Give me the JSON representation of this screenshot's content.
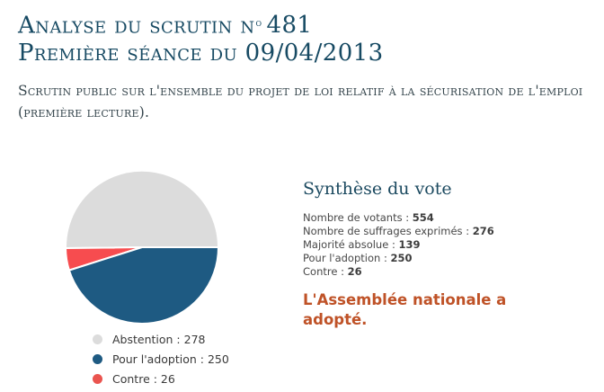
{
  "header": {
    "title_prefix": "Analyse du scrutin n",
    "title_ordinal": "o",
    "title_number": "481",
    "title_line2": "Première séance du 09/04/2013",
    "title_color": "#174a63",
    "subtitle": "Scrutin public sur l'ensemble du projet de loi relatif à la sécurisation de l'emploi (première lecture).",
    "subtitle_color": "#36464d"
  },
  "synthese": {
    "heading": "Synthèse du vote",
    "heading_color": "#1c4a60",
    "stats": [
      {
        "label": "Nombre de votants :",
        "value": "554"
      },
      {
        "label": "Nombre de suffrages exprimés :",
        "value": "276"
      },
      {
        "label": "Majorité absolue :",
        "value": "139"
      },
      {
        "label": "Pour l'adoption :",
        "value": "250"
      },
      {
        "label": "Contre :",
        "value": "26"
      }
    ],
    "result_message": "L'Assemblée nationale a adopté.",
    "result_color": "#bf5227"
  },
  "chart_data": {
    "type": "pie",
    "title": "",
    "total": 554,
    "start_angle_deg": 0,
    "direction": "counterclockwise",
    "slices": [
      {
        "label": "Abstention",
        "value": 278,
        "color": "#dcdcdc"
      },
      {
        "label": "Contre",
        "value": 26,
        "color": "#f74c4f"
      },
      {
        "label": "Pour l'adoption",
        "value": 250,
        "color": "#1e5a82"
      }
    ],
    "legend_position": "below-left",
    "legend": [
      {
        "text": "Abstention : 278",
        "color": "#dcdcdc"
      },
      {
        "text": "Pour l'adoption : 250",
        "color": "#1e5a82"
      },
      {
        "text": "Contre : 26",
        "color": "#ea544f"
      }
    ]
  }
}
